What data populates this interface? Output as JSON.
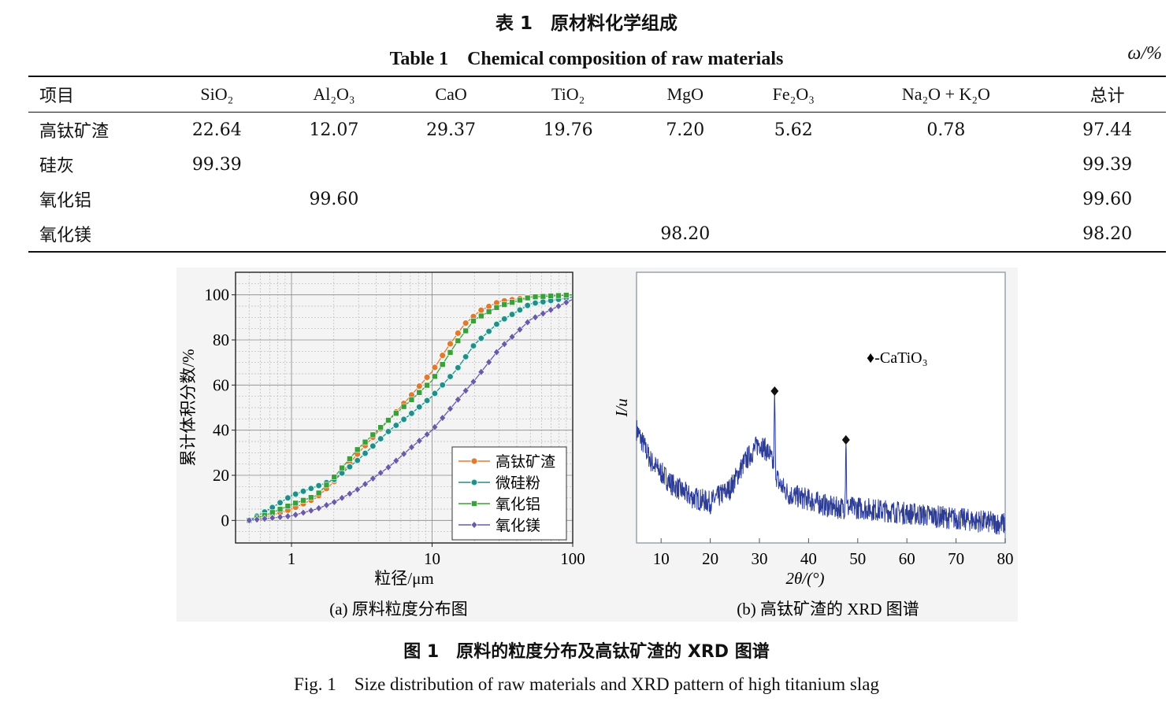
{
  "table": {
    "caption_cn": "表 1　原材料化学组成",
    "caption_en": "Table 1　Chemical composition of raw materials",
    "unit": "ω/%",
    "headers": [
      "项目",
      "SiO₂",
      "Al₂O₃",
      "CaO",
      "TiO₂",
      "MgO",
      "Fe₂O₃",
      "Na₂O + K₂O",
      "总计"
    ],
    "rows": [
      [
        "高钛矿渣",
        "22.64",
        "12.07",
        "29.37",
        "19.76",
        "7.20",
        "5.62",
        "0.78",
        "97.44"
      ],
      [
        "硅灰",
        "99.39",
        "",
        "",
        "",
        "",
        "",
        "",
        "99.39"
      ],
      [
        "氧化铝",
        "",
        "99.60",
        "",
        "",
        "",
        "",
        "",
        "99.60"
      ],
      [
        "氧化镁",
        "",
        "",
        "",
        "",
        "98.20",
        "",
        "",
        "98.20"
      ]
    ]
  },
  "figure": {
    "caption_cn": "图 1　原料的粒度分布及高钛矿渣的 XRD 图谱",
    "caption_en": "Fig. 1　Size distribution of raw materials and XRD pattern of high titanium slag",
    "sub_a": "(a) 原料粒度分布图",
    "sub_b": "(b) 高钛矿渣的 XRD 图谱"
  },
  "chart_data": [
    {
      "type": "line",
      "xlabel": "粒径/μm",
      "ylabel": "累计体积分数/%",
      "xscale": "log",
      "xlim": [
        0.4,
        100
      ],
      "ylim": [
        -10,
        110
      ],
      "xticks": [
        "1",
        "10",
        "100"
      ],
      "yticks": [
        "0",
        "20",
        "40",
        "60",
        "80",
        "100"
      ],
      "grid": true,
      "legend": "bottom-right",
      "colors": [
        "#e07a2f",
        "#2a8a8a",
        "#3aa03a",
        "#6a5aa8"
      ],
      "series": [
        {
          "name": "高钛矿渣",
          "marker": "circle",
          "x": [
            0.5,
            0.7,
            1,
            1.5,
            2,
            3,
            5,
            7,
            10,
            13,
            17,
            22,
            30,
            50,
            100
          ],
          "y": [
            0,
            2,
            5,
            10,
            17,
            30,
            45,
            55,
            66,
            77,
            87,
            93,
            97,
            99,
            100
          ]
        },
        {
          "name": "微硅粉",
          "marker": "circle-half",
          "x": [
            0.5,
            0.7,
            1,
            1.5,
            2,
            3,
            5,
            7,
            10,
            15,
            20,
            30,
            50,
            100
          ],
          "y": [
            0,
            5,
            11,
            15,
            18,
            27,
            40,
            47,
            55,
            67,
            78,
            88,
            96,
            99
          ]
        },
        {
          "name": "氧化铝",
          "marker": "square",
          "x": [
            0.5,
            0.7,
            1,
            1.5,
            2,
            3,
            5,
            7,
            10,
            15,
            20,
            30,
            50,
            100
          ],
          "y": [
            0,
            3,
            7,
            11,
            19,
            32,
            45,
            53,
            62,
            79,
            89,
            95,
            99,
            100
          ]
        },
        {
          "name": "氧化镁",
          "marker": "diamond",
          "x": [
            0.5,
            0.7,
            1,
            1.5,
            2,
            3,
            5,
            7,
            10,
            15,
            20,
            30,
            50,
            100
          ],
          "y": [
            0,
            1,
            2,
            5,
            8,
            14,
            24,
            32,
            40,
            53,
            62,
            76,
            89,
            98
          ]
        }
      ]
    },
    {
      "type": "line",
      "xlabel": "2θ/(°)",
      "ylabel": "I/u",
      "xlim": [
        5,
        80
      ],
      "xticks": [
        "10",
        "20",
        "30",
        "40",
        "50",
        "60",
        "70",
        "80"
      ],
      "legend_text": "♦-CaTiO₃",
      "peaks_2theta": [
        33.1,
        47.6
      ],
      "color": "#2d3d96",
      "series": [
        {
          "x": [
            5,
            8,
            12,
            16,
            20,
            24,
            27,
            30,
            32,
            34,
            36,
            40,
            45,
            50,
            55,
            60,
            65,
            70,
            75,
            80
          ],
          "y": [
            0.42,
            0.3,
            0.22,
            0.17,
            0.15,
            0.2,
            0.3,
            0.37,
            0.33,
            0.22,
            0.18,
            0.16,
            0.13,
            0.13,
            0.12,
            0.11,
            0.1,
            0.09,
            0.08,
            0.07
          ]
        }
      ]
    }
  ]
}
